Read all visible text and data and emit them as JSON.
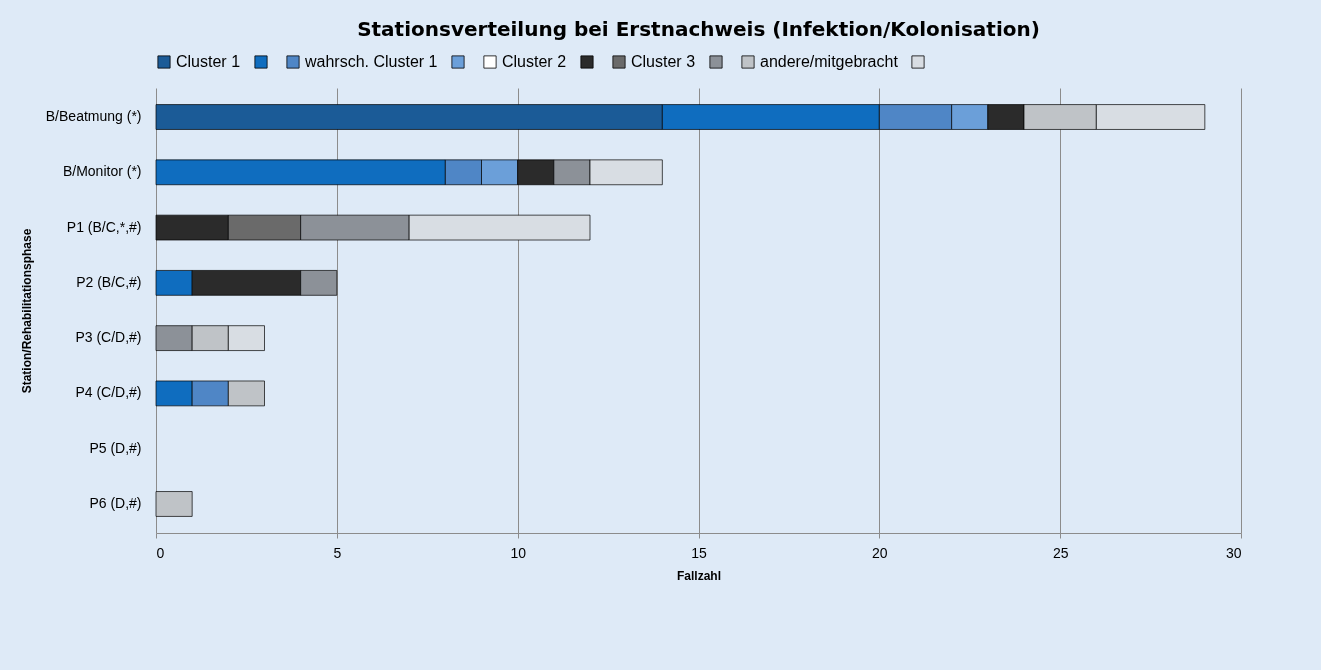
{
  "chart_data": {
    "type": "bar",
    "orientation": "horizontal",
    "stacked": true,
    "title": "Stationsverteilung bei Erstnachweis (Infektion/Kolonisation)",
    "xlabel": "Fallzahl",
    "ylabel": "Station/Rehabilitationsphase",
    "categories": [
      "B/Beatmung (*)",
      "B/Monitor (*)",
      "P1 (B/C,*,#)",
      "P2 (B/C,#)",
      "P3 (C/D,#)",
      "P4 (C/D,#)",
      "P5 (D,#)",
      "P6 (D,#)"
    ],
    "series": [
      {
        "name": "Cluster 1",
        "color": "#1b5b97",
        "values": [
          14,
          0,
          0,
          0,
          0,
          0,
          0,
          0
        ]
      },
      {
        "color": "#0f6dbf",
        "values": [
          6,
          8,
          0,
          1,
          0,
          1,
          0,
          0
        ]
      },
      {
        "name": "wahrsch. Cluster 1",
        "color": "#4f86c6",
        "values": [
          2,
          1,
          0,
          0,
          0,
          1,
          0,
          0
        ]
      },
      {
        "color": "#6b9fd9",
        "values": [
          1,
          1,
          0,
          0,
          0,
          0,
          0,
          0
        ]
      },
      {
        "name": "Cluster 2",
        "color": "#ffffff",
        "values": [
          0,
          0,
          0,
          0,
          0,
          0,
          0,
          0
        ]
      },
      {
        "color": "#2b2b2b",
        "values": [
          1,
          1,
          2,
          3,
          0,
          0,
          0,
          0
        ]
      },
      {
        "name": "Cluster 3",
        "color": "#6a6a6a",
        "values": [
          0,
          0,
          2,
          0,
          0,
          0,
          0,
          0
        ]
      },
      {
        "color": "#8c9198",
        "values": [
          0,
          1,
          3,
          1,
          1,
          0,
          0,
          0
        ]
      },
      {
        "name": "andere/mitgebracht",
        "color": "#bfc3c7",
        "values": [
          2,
          0,
          0,
          0,
          1,
          1,
          0,
          1
        ]
      },
      {
        "color": "#d8dde3",
        "values": [
          3,
          2,
          5,
          0,
          1,
          0,
          0,
          0
        ]
      }
    ],
    "xlim": [
      0,
      30
    ],
    "xticks": [
      0,
      5,
      10,
      15,
      20,
      25,
      30
    ],
    "grid": "x",
    "legend": "top"
  }
}
